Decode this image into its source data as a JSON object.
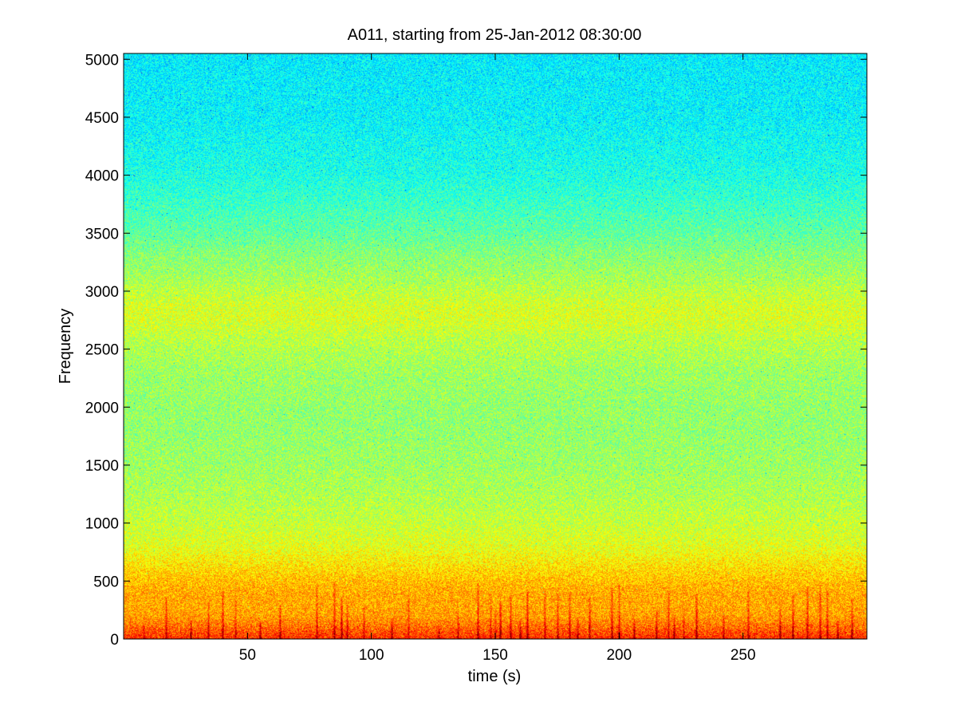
{
  "chart_data": {
    "type": "heatmap",
    "title": "A011, starting from 25-Jan-2012 08:30:00",
    "xlabel": "time (s)",
    "ylabel": "Frequency",
    "xlim": [
      0,
      300
    ],
    "ylim": [
      0,
      5050
    ],
    "xticks": [
      50,
      100,
      150,
      200,
      250
    ],
    "yticks": [
      0,
      500,
      1000,
      1500,
      2000,
      2500,
      3000,
      3500,
      4000,
      4500,
      5000
    ],
    "colormap": "jet",
    "grid": false,
    "legend": "none",
    "frequency_profile": {
      "note": "relative spectral intensity (0 = blue/cyan end, 1 = red end) versus frequency",
      "frequency": [
        0,
        60,
        120,
        200,
        300,
        400,
        500,
        600,
        700,
        800,
        1000,
        1200,
        1500,
        1800,
        2000,
        2300,
        2500,
        2600,
        2700,
        2800,
        2900,
        3000,
        3100,
        3300,
        3500,
        3700,
        4000,
        4500,
        5050
      ],
      "intensity": [
        0.84,
        0.8,
        0.76,
        0.72,
        0.71,
        0.71,
        0.69,
        0.66,
        0.63,
        0.6,
        0.57,
        0.55,
        0.53,
        0.52,
        0.52,
        0.53,
        0.55,
        0.56,
        0.58,
        0.59,
        0.58,
        0.56,
        0.54,
        0.51,
        0.47,
        0.44,
        0.4,
        0.37,
        0.36
      ]
    },
    "transient_events_s": [
      8,
      17,
      27,
      34,
      40,
      45,
      55,
      63,
      78,
      85,
      88,
      90,
      97,
      108,
      115,
      127,
      135,
      143,
      148,
      150,
      152,
      156,
      160,
      163,
      170,
      175,
      180,
      183,
      188,
      197,
      200,
      206,
      215,
      220,
      222,
      226,
      231,
      242,
      252,
      265,
      270,
      276,
      281,
      284,
      288,
      294
    ]
  }
}
